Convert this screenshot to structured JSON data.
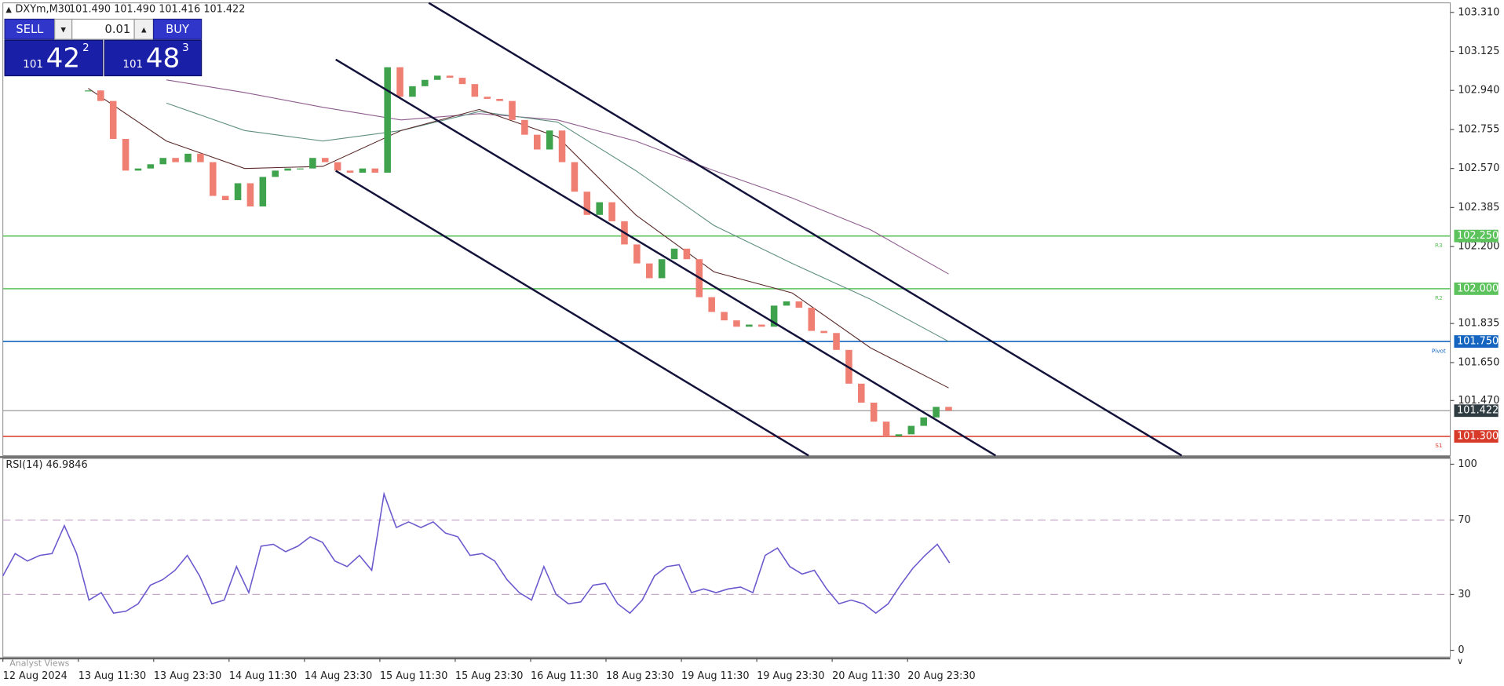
{
  "header": {
    "symbol": "DXYm,M30",
    "ohlc": "101.490 101.490 101.416 101.422"
  },
  "trade_panel": {
    "sell": "SELL",
    "buy": "BUY",
    "lot": "0.01",
    "bid_big": "101",
    "bid_main": "42",
    "bid_sup": "2",
    "ask_big": "101",
    "ask_main": "48",
    "ask_sup": "3"
  },
  "chart_data": [
    {
      "type": "candlestick",
      "values": [
        102.94,
        102.89,
        102.71,
        102.56,
        102.57,
        102.59,
        102.62,
        102.6,
        102.64,
        102.6,
        102.44,
        102.42,
        102.5,
        102.39,
        102.53,
        102.56,
        102.57,
        102.57,
        102.62,
        102.6,
        102.56,
        102.55,
        102.57,
        102.55,
        103.05,
        102.91,
        102.96,
        102.99,
        103.01,
        103.0,
        102.97,
        102.91,
        102.9,
        102.89,
        102.8,
        102.73,
        102.66,
        102.75,
        102.6,
        102.46,
        102.35,
        102.41,
        102.32,
        102.21,
        102.12,
        102.05,
        102.14,
        102.19,
        102.14,
        101.96,
        101.89,
        101.85,
        101.82,
        101.83,
        101.82,
        101.92,
        101.94,
        101.91,
        101.8,
        101.79,
        101.71,
        101.55,
        101.46,
        101.37,
        101.3,
        101.31,
        101.35,
        101.39,
        101.44,
        101.422
      ],
      "up_color": "#3fa34d",
      "down_color": "#ef7f73",
      "lines": [
        {
          "color": "#8e5b8e",
          "values": [
            null,
            102.99,
            102.93,
            102.86,
            102.8,
            102.83,
            102.8,
            102.7,
            102.56,
            102.43,
            102.28,
            102.07
          ]
        },
        {
          "color": "#5f8f80",
          "values": [
            null,
            102.88,
            102.75,
            102.7,
            102.75,
            102.84,
            102.79,
            102.56,
            102.3,
            102.12,
            101.95,
            101.75
          ]
        },
        {
          "color": "#5a2a2a",
          "values": [
            102.95,
            102.7,
            102.57,
            102.58,
            102.75,
            102.85,
            102.72,
            102.35,
            102.08,
            101.98,
            101.72,
            101.53
          ]
        }
      ],
      "ylim": [
        101.209,
        103.355
      ],
      "yticks": [
        {
          "value": 103.31,
          "label": "103.310"
        },
        103.125,
        {
          "value": 102.94,
          "label": "102.940"
        },
        102.755,
        {
          "value": 102.57,
          "label": "102.570"
        },
        102.385,
        {
          "value": 102.2,
          "label": "102.200"
        },
        101.835,
        {
          "value": 101.65,
          "label": "101.650"
        },
        {
          "value": 101.47,
          "label": "101.470"
        }
      ],
      "levels": [
        {
          "value": 102.25,
          "label": "102.250",
          "name": "R3",
          "color": "#5cc25c"
        },
        {
          "value": 102,
          "label": "102.000",
          "name": "R2",
          "color": "#5cc25c"
        },
        {
          "value": 101.75,
          "label": "101.750",
          "name": "Pivot",
          "color": "#1565c0"
        },
        {
          "value": 101.3,
          "label": "101.300",
          "name": "S1",
          "color": "#d83a2a"
        }
      ],
      "current": 101.422,
      "x_labels": [
        "12 Aug 2024",
        "13 Aug 11:30",
        "13 Aug 23:30",
        "14 Aug 11:30",
        "14 Aug 23:30",
        "15 Aug 11:30",
        "15 Aug 23:30",
        "16 Aug 11:30",
        "18 Aug 23:30",
        "19 Aug 11:30",
        "19 Aug 23:30",
        "20 Aug 11:30",
        "20 Aug 23:30"
      ]
    },
    {
      "type": "line",
      "title": "RSI(14) 46.9846",
      "color": "#6a5acd",
      "values": [
        40,
        52,
        48,
        51,
        52,
        67,
        52,
        27,
        31,
        20,
        21,
        25,
        35,
        38,
        43,
        51,
        40,
        25,
        27,
        45,
        31,
        56,
        57,
        53,
        56,
        61,
        58,
        48,
        45,
        51,
        43,
        84,
        66,
        69,
        66,
        69,
        63,
        61,
        51,
        52,
        48,
        38,
        31,
        27,
        45,
        30,
        25,
        26,
        35,
        36,
        25,
        20,
        27,
        40,
        45,
        46,
        31,
        33,
        31,
        33,
        34,
        31,
        51,
        55,
        45,
        41,
        43,
        33,
        25,
        27,
        25,
        20,
        25,
        35,
        44,
        51,
        57,
        46.98
      ],
      "ylim": [
        0,
        100
      ],
      "yticks": [
        0,
        30,
        70,
        100
      ],
      "levels": [
        30,
        70
      ]
    }
  ],
  "footer": {
    "tab": "Analyst Views"
  }
}
